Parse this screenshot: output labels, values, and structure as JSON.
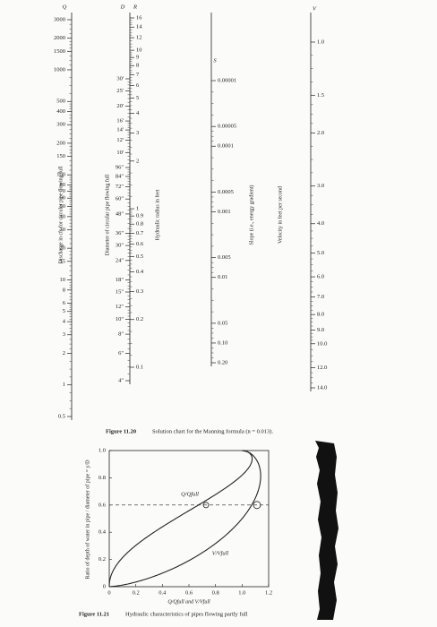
{
  "figure_1": {
    "scales": [
      {
        "symbol": "Q",
        "label": "Discharge in cfs for circular pipe flowing full",
        "ticks": [
          "3000",
          "2000",
          "1500",
          "1000",
          "500",
          "400",
          "300",
          "200",
          "150",
          "100",
          "80",
          "70",
          "60",
          "50",
          "40",
          "30",
          "20",
          "15",
          "10",
          "8",
          "6",
          "5",
          "4",
          "3",
          "2",
          "1",
          "0.5"
        ]
      },
      {
        "symbol": "D",
        "label": "Diameter of circular pipe flowing full",
        "ticks": [
          "30'",
          "25'",
          "20'",
          "16'",
          "14'",
          "12'",
          "10'",
          "96\"",
          "84\"",
          "72\"",
          "60\"",
          "48\"",
          "36\"",
          "30\"",
          "24\"",
          "18\"",
          "15\"",
          "12\"",
          "10\"",
          "8\"",
          "6\"",
          "4\""
        ]
      },
      {
        "symbol": "R",
        "label": "Hydraulic radius in feet",
        "ticks": [
          "16",
          "14",
          "12",
          "10",
          "9",
          "8",
          "7",
          "6",
          "5",
          "4",
          "3",
          "2",
          "1",
          "0.9",
          "0.8",
          "0.7",
          "0.6",
          "0.5",
          "0.4",
          "0.3",
          "0.2",
          "0.1"
        ]
      },
      {
        "symbol": "S",
        "label": "Slope (i.e., energy gradient)",
        "ticks": [
          "0.00001",
          "0.00005",
          "0.0001",
          "0.0005",
          "0.001",
          "0.005",
          "0.01",
          "0.05",
          "0.10",
          "0.20"
        ]
      },
      {
        "symbol": "V",
        "label": "Velocity in feet per second",
        "ticks": [
          "1.0",
          "1.5",
          "2.0",
          "3.0",
          "4.0",
          "5.0",
          "6.0",
          "7.0",
          "8.0",
          "9.0",
          "10.0",
          "12.0",
          "14.0"
        ]
      }
    ],
    "caption_number": "Figure 11.20",
    "caption": "Solution chart for the Manning formula (n = 0.013)."
  },
  "figure_2": {
    "y_axis_label": "Ratio of depth of water in pipe / diameter of pipe = y/D",
    "x_axis_label": "Q/Qfull and V/Vfull",
    "y_ticks": [
      "0",
      "0.2",
      "0.4",
      "0.6",
      "0.8",
      "1.0"
    ],
    "x_ticks": [
      "0",
      "0.2",
      "0.4",
      "0.6",
      "0.8",
      "1.0",
      "1.2"
    ],
    "curve_labels": [
      "Q/Qfull",
      "V/Vfull"
    ],
    "caption_number": "Figure 11.21",
    "caption": "Hydraulic characteristics of pipes flowing partly full"
  }
}
